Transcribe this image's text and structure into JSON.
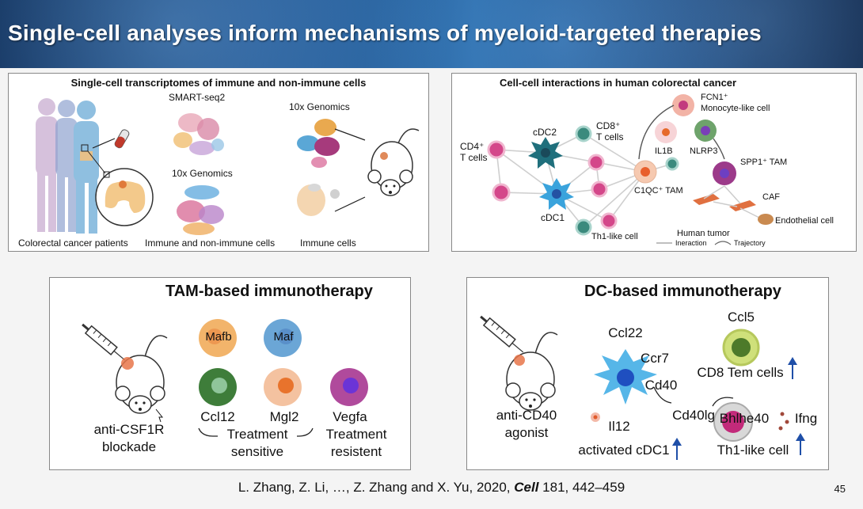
{
  "title": "Single-cell analyses inform mechanisms of myeloid-targeted therapies",
  "panel_tl": {
    "title": "Single-cell transcriptomes of immune and non-immune cells",
    "smart_seq": "SMART-seq2",
    "genomics_a": "10x Genomics",
    "genomics_b": "10x Genomics",
    "genomics_c": "10x Genomics",
    "caption_patients": "Colorectal cancer patients",
    "caption_immune_nonimmune": "Immune and non-immune cells",
    "caption_immune": "Immune cells"
  },
  "panel_tr": {
    "title": "Cell-cell interactions in human colorectal cancer",
    "cd4": "CD4⁺",
    "cd4_b": "T cells",
    "cdc2": "cDC2",
    "cd8": "CD8⁺",
    "cd8_b": "T cells",
    "fcn1": "FCN1⁺",
    "fcn1_b": "Monocyte-like cell",
    "il1b": "IL1B",
    "nlrp3": "NLRP3",
    "spp1": "SPP1⁺ TAM",
    "c1qc": "C1QC⁺ TAM",
    "cdc1": "cDC1",
    "caf": "CAF",
    "endothelial": "Endothelial cell",
    "th1": "Th1-like cell",
    "human_tumor": "Human tumor",
    "interaction": "Ineraction",
    "trajectory": "Trajectory"
  },
  "panel_bl": {
    "title": "TAM-based immunotherapy",
    "treatment_line1": "anti-CSF1R",
    "treatment_line2": "blockade",
    "mafb": "Mafb",
    "maf": "Maf",
    "ccl12": "Ccl12",
    "mgl2": "Mgl2",
    "vegfa": "Vegfa",
    "sensitive_line1": "Treatment",
    "sensitive_line2": "sensitive",
    "resistant_line1": "Treatment",
    "resistant_line2": "resistent"
  },
  "panel_br": {
    "title": "DC-based immunotherapy",
    "treatment_line1": "anti-CD40",
    "treatment_line2": "agonist",
    "ccl22": "Ccl22",
    "ccr7": "Ccr7",
    "cd40": "Cd40",
    "cd40lg": "Cd40lg",
    "il12": "Il12",
    "activated": "activated cDC1",
    "ccl5": "Ccl5",
    "cd8tem": "CD8 Tem cells",
    "bhlhe40": "Bhlhe40",
    "ifng": "Ifng",
    "th1": "Th1-like cell"
  },
  "footer": {
    "citation_pre": "L. Zhang, Z. Li, …, Z. Zhang and X. Yu, 2020,",
    "journal": "Cell",
    "citation_post": "181, 442–459"
  },
  "page_number": "45",
  "colors": {
    "accent_arrow": "#1f4fa8",
    "banner": "#1c4f8a"
  }
}
